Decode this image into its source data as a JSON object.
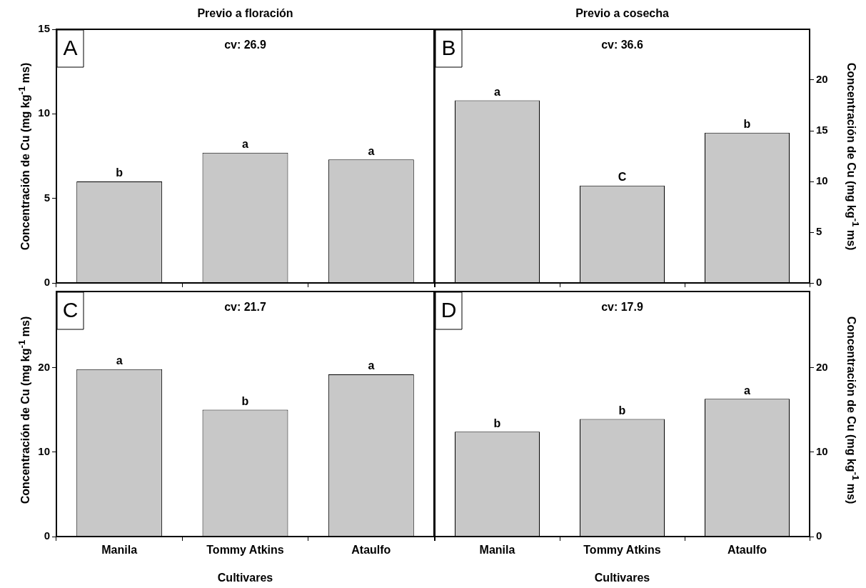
{
  "chart_data": [
    {
      "type": "bar",
      "title": "Previo a floración",
      "categories": [
        "Manila",
        "Tommy Atkins",
        "Ataulfo"
      ],
      "series": [
        {
          "color": "#c8c8c8",
          "values": [
            6.0,
            7.7,
            7.3
          ]
        }
      ],
      "ylabel": "Concentración de Cu (mg kg$^{-1}$ ms)",
      "ylim": [
        0,
        15
      ],
      "yticks": [
        0,
        5,
        10,
        15
      ],
      "tick_labels": "y",
      "annotations": [
        "A",
        "cv: 26.9",
        {
          "text": "b",
          "x": "Manila",
          "y": 6.0
        },
        {
          "text": "a",
          "x": "Tommy Atkins",
          "y": 7.7
        },
        {
          "text": "a",
          "x": "Ataulfo",
          "y": 7.3
        }
      ]
    },
    {
      "type": "bar",
      "title": "Previo a cosecha",
      "categories": [
        "Manila",
        "Tommy Atkins",
        "Ataulfo"
      ],
      "series": [
        {
          "color": "#c8c8c8",
          "values": [
            18.0,
            9.6,
            14.8
          ]
        }
      ],
      "ylabel": "Concentración de Cu (mg kg$^{-1}$ ms)",
      "ylim": [
        0,
        25
      ],
      "yticks": [
        0,
        5,
        10,
        15,
        20
      ],
      "tick_labels": "y",
      "annotations": [
        "B",
        "cv: 36.6",
        {
          "text": "a",
          "x": "Manila",
          "y": 18.0
        },
        {
          "text": "C",
          "x": "Tommy Atkins",
          "y": 9.6
        },
        {
          "text": "b",
          "x": "Ataulfo",
          "y": 14.8
        }
      ]
    },
    {
      "type": "bar",
      "categories": [
        "Manila",
        "Tommy Atkins",
        "Ataulfo"
      ],
      "series": [
        {
          "color": "#c8c8c8",
          "values": [
            19.8,
            15.0,
            19.2
          ]
        }
      ],
      "xlabel": "Cultivares",
      "ylabel": "Concentración de Cu (mg kg$^{-1}$ ms)",
      "ylim": [
        0,
        29
      ],
      "yticks": [
        0,
        10,
        20
      ],
      "annotations": [
        "C",
        "cv: 21.7",
        {
          "text": "a",
          "x": "Manila",
          "y": 19.8
        },
        {
          "text": "b",
          "x": "Tommy Atkins",
          "y": 15.0
        },
        {
          "text": "a",
          "x": "Ataulfo",
          "y": 19.2
        }
      ]
    },
    {
      "type": "bar",
      "categories": [
        "Manila",
        "Tommy Atkins",
        "Ataulfo"
      ],
      "series": [
        {
          "color": "#c8c8c8",
          "values": [
            12.4,
            13.9,
            16.3
          ]
        }
      ],
      "xlabel": "Cultivares",
      "ylabel": "Concentración de Cu (mg kg$^{-1}$ ms)",
      "ylim": [
        0,
        29
      ],
      "yticks": [
        0,
        10,
        20
      ],
      "annotations": [
        "D",
        "cv: 17.9",
        {
          "text": "b",
          "x": "Manila",
          "y": 12.4
        },
        {
          "text": "b",
          "x": "Tommy Atkins",
          "y": 13.9
        },
        {
          "text": "a",
          "x": "Ataulfo",
          "y": 16.3
        }
      ]
    }
  ]
}
